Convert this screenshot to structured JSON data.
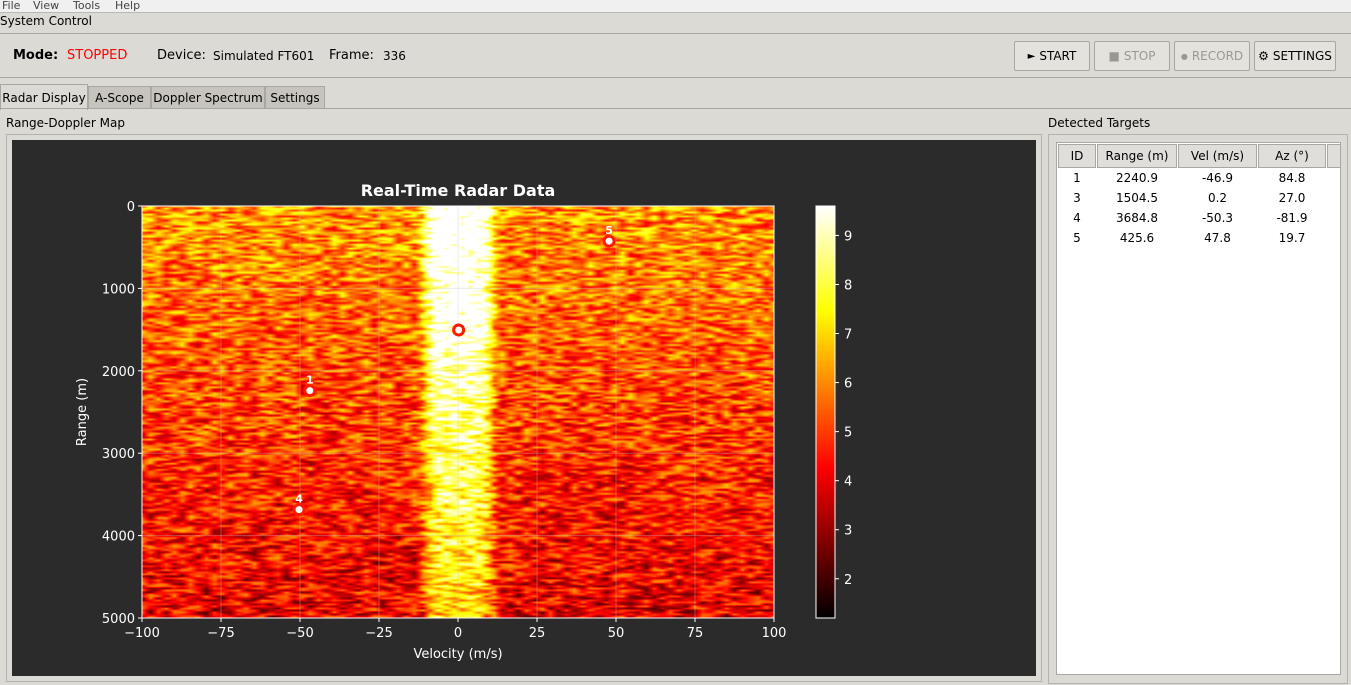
{
  "menu": [
    "File",
    "View",
    "Tools",
    "Help"
  ],
  "system_control": {
    "title": "System Control",
    "mode_label": "Mode:",
    "mode_value": "STOPPED",
    "mode_color": "#ff0000",
    "device_label": "Device:",
    "device_value": "Simulated FT601",
    "frame_label": "Frame:",
    "frame_value": "336",
    "buttons": [
      {
        "icon": "play-icon",
        "glyph": "►",
        "label": "START",
        "enabled": true
      },
      {
        "icon": "stop-icon",
        "glyph": "■",
        "label": "STOP",
        "enabled": false
      },
      {
        "icon": "record-icon",
        "glyph": "●",
        "label": "RECORD",
        "enabled": false
      },
      {
        "icon": "gear-icon",
        "glyph": "⚙",
        "label": "SETTINGS",
        "enabled": true
      }
    ]
  },
  "tabs": [
    {
      "label": "Radar Display",
      "active": true
    },
    {
      "label": "A-Scope"
    },
    {
      "label": "Doppler Spectrum"
    },
    {
      "label": "Settings"
    }
  ],
  "map_group_title": "Range-Doppler Map",
  "targets_group_title": "Detected Targets",
  "chart_data": {
    "type": "heatmap",
    "title": "Real-Time Radar Data",
    "xlabel": "Velocity (m/s)",
    "ylabel": "Range (m)",
    "xlim": [
      -100,
      100
    ],
    "ylim": [
      5000,
      0
    ],
    "xticks": [
      "−100",
      "−75",
      "−50",
      "−25",
      "0",
      "25",
      "50",
      "75",
      "100"
    ],
    "xtick_values": [
      -100,
      -75,
      -50,
      -25,
      0,
      25,
      50,
      75,
      100
    ],
    "yticks": [
      "0",
      "1000",
      "2000",
      "3000",
      "4000",
      "5000"
    ],
    "ytick_values": [
      0,
      1000,
      2000,
      3000,
      4000,
      5000
    ],
    "colormap": "hot",
    "colorbar": {
      "range": [
        1.2,
        9.6
      ],
      "ticks": [
        "2",
        "3",
        "4",
        "5",
        "6",
        "7",
        "8",
        "9"
      ],
      "tick_values": [
        2,
        3,
        4,
        5,
        6,
        7,
        8,
        9
      ]
    },
    "grid": true,
    "markers": [
      {
        "id": "1",
        "velocity": -46.9,
        "range": 2240.9
      },
      {
        "id": "3",
        "velocity": 0.2,
        "range": 1504.5
      },
      {
        "id": "4",
        "velocity": -50.3,
        "range": 3684.8
      },
      {
        "id": "5",
        "velocity": 47.8,
        "range": 425.6
      }
    ]
  },
  "targets_table": {
    "columns": [
      "ID",
      "Range (m)",
      "Vel (m/s)",
      "Az (°)"
    ],
    "rows": [
      [
        "1",
        "2240.9",
        "-46.9",
        "84.8"
      ],
      [
        "3",
        "1504.5",
        "0.2",
        "27.0"
      ],
      [
        "4",
        "3684.8",
        "-50.3",
        "-81.9"
      ],
      [
        "5",
        "425.6",
        "47.8",
        "19.7"
      ]
    ]
  }
}
